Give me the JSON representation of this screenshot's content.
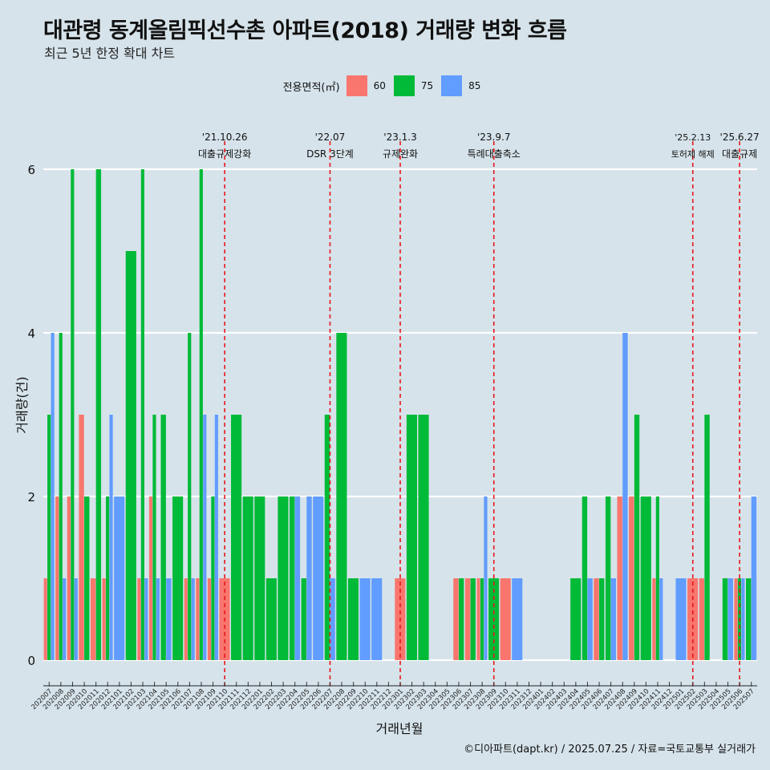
{
  "header": {
    "title": "대관령 동계올림픽선수촌 아파트(2018) 거래량 변화 흐름",
    "subtitle": "최근 5년 한정 확대 차트"
  },
  "legend": {
    "title": "전용면적(㎡)",
    "items": [
      {
        "label": "60",
        "color": "#f8766d"
      },
      {
        "label": "75",
        "color": "#00ba38"
      },
      {
        "label": "85",
        "color": "#619cff"
      }
    ]
  },
  "footer": {
    "source": "©디아파트(dapt.kr) / 2025.07.25 / 자료=국토교통부 실거래가"
  },
  "chart_data": {
    "type": "bar",
    "xlabel": "거래년월",
    "ylabel": "거래량(건)",
    "ylim": [
      0,
      6
    ],
    "yticks": [
      0,
      2,
      4,
      6
    ],
    "grid": true,
    "legend_position": "top",
    "categories": [
      "202007",
      "202008",
      "202009",
      "202010",
      "202011",
      "202012",
      "202101",
      "202102",
      "202103",
      "202104",
      "202105",
      "202106",
      "202107",
      "202108",
      "202109",
      "202110",
      "202111",
      "202112",
      "202201",
      "202202",
      "202203",
      "202204",
      "202205",
      "202206",
      "202207",
      "202208",
      "202209",
      "202210",
      "202211",
      "202212",
      "202301",
      "202302",
      "202303",
      "202304",
      "202305",
      "202306",
      "202307",
      "202308",
      "202309",
      "202310",
      "202311",
      "202312",
      "202401",
      "202402",
      "202403",
      "202404",
      "202405",
      "202406",
      "202407",
      "202408",
      "202409",
      "202410",
      "202411",
      "202412",
      "202501",
      "202502",
      "202503",
      "202504",
      "202505",
      "202506",
      "202507"
    ],
    "series": [
      {
        "name": "60",
        "color": "#f8766d",
        "values": [
          1,
          2,
          2,
          3,
          1,
          1,
          0,
          0,
          1,
          2,
          0,
          0,
          1,
          1,
          1,
          1,
          0,
          0,
          0,
          0,
          0,
          0,
          0,
          0,
          0,
          0,
          0,
          0,
          0,
          0,
          1,
          0,
          0,
          0,
          0,
          1,
          1,
          1,
          0,
          1,
          0,
          0,
          0,
          0,
          0,
          0,
          0,
          1,
          0,
          2,
          2,
          0,
          1,
          0,
          0,
          1,
          1,
          0,
          0,
          1,
          0
        ]
      },
      {
        "name": "75",
        "color": "#00ba38",
        "values": [
          3,
          4,
          6,
          2,
          6,
          2,
          0,
          5,
          6,
          3,
          3,
          2,
          4,
          6,
          2,
          0,
          3,
          2,
          2,
          1,
          2,
          2,
          1,
          0,
          3,
          4,
          1,
          0,
          0,
          0,
          0,
          3,
          3,
          0,
          0,
          1,
          1,
          1,
          1,
          0,
          0,
          0,
          0,
          0,
          0,
          1,
          2,
          1,
          2,
          0,
          3,
          2,
          2,
          0,
          0,
          0,
          3,
          0,
          1,
          1,
          1
        ]
      },
      {
        "name": "85",
        "color": "#619cff",
        "values": [
          4,
          1,
          1,
          0,
          0,
          3,
          2,
          0,
          1,
          1,
          1,
          0,
          1,
          3,
          3,
          0,
          0,
          0,
          0,
          0,
          0,
          2,
          2,
          2,
          1,
          0,
          0,
          1,
          1,
          0,
          0,
          0,
          0,
          0,
          0,
          0,
          0,
          2,
          0,
          0,
          1,
          0,
          0,
          0,
          0,
          0,
          1,
          0,
          1,
          4,
          0,
          0,
          1,
          0,
          1,
          0,
          0,
          0,
          1,
          1,
          2
        ]
      }
    ],
    "events": [
      {
        "date": "'21.10.26",
        "label": "대출규제강화",
        "at": "202110"
      },
      {
        "date": "'22.07",
        "label": "DSR 3단계",
        "at": "202207"
      },
      {
        "date": "'23.1.3",
        "label": "규제완화",
        "at": "202301"
      },
      {
        "date": "'23.9.7",
        "label": "특례대출축소",
        "at": "202309"
      },
      {
        "date": "'25.2.13",
        "label": "토허제 해제",
        "at": "202502"
      },
      {
        "date": "'25.6.27",
        "label": "대출규제",
        "at": "202506"
      }
    ]
  }
}
